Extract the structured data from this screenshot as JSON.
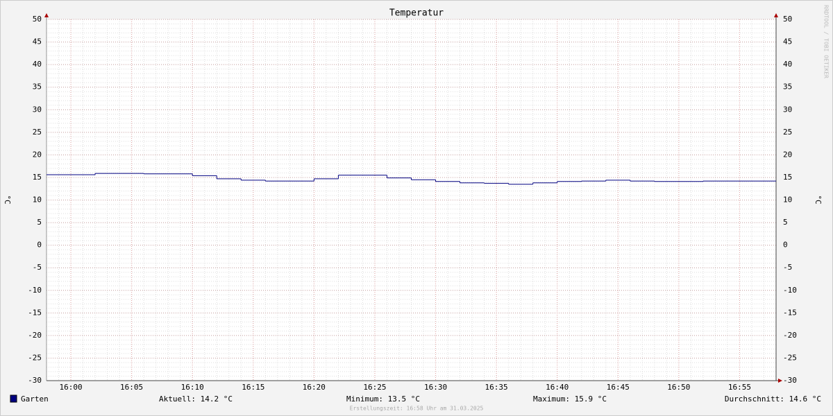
{
  "chart_data": {
    "type": "line",
    "title": "Temperatur",
    "y_label": "°C",
    "y2_label": "°C",
    "x": [
      958,
      962,
      966,
      970,
      972,
      974,
      976,
      980,
      982,
      986,
      988,
      990,
      992,
      994,
      996,
      998,
      1000,
      1002,
      1004,
      1006,
      1008,
      1012
    ],
    "series": [
      {
        "name": "Garten",
        "color": "#000080",
        "values": [
          15.6,
          15.9,
          15.8,
          15.4,
          14.7,
          14.4,
          14.2,
          14.7,
          15.5,
          14.9,
          14.5,
          14.1,
          13.8,
          13.7,
          13.5,
          13.8,
          14.1,
          14.2,
          14.4,
          14.2,
          14.1,
          14.2
        ]
      }
    ],
    "xlim": [
      958,
      1018
    ],
    "xticks": [
      {
        "value": 960,
        "label": "16:00"
      },
      {
        "value": 965,
        "label": "16:05"
      },
      {
        "value": 970,
        "label": "16:10"
      },
      {
        "value": 975,
        "label": "16:15"
      },
      {
        "value": 980,
        "label": "16:20"
      },
      {
        "value": 985,
        "label": "16:25"
      },
      {
        "value": 990,
        "label": "16:30"
      },
      {
        "value": 995,
        "label": "16:35"
      },
      {
        "value": 1000,
        "label": "16:40"
      },
      {
        "value": 1005,
        "label": "16:45"
      },
      {
        "value": 1010,
        "label": "16:50"
      },
      {
        "value": 1015,
        "label": "16:55"
      }
    ],
    "ylim": [
      -30,
      50
    ],
    "yticks": [
      -30,
      -25,
      -20,
      -15,
      -10,
      -5,
      0,
      5,
      10,
      15,
      20,
      25,
      30,
      35,
      40,
      45,
      50
    ],
    "grid": true,
    "legend_stats": [
      "Aktuell: 14.2 °C",
      "Minimum: 13.5 °C",
      "Maximum: 15.9 °C",
      "Durchschnitt: 14.6 °C"
    ],
    "footer": "Erstellungszeit: 16:58 Uhr am 31.03.2025",
    "watermark": "RRDTOOL / TOBI OETIKER"
  }
}
